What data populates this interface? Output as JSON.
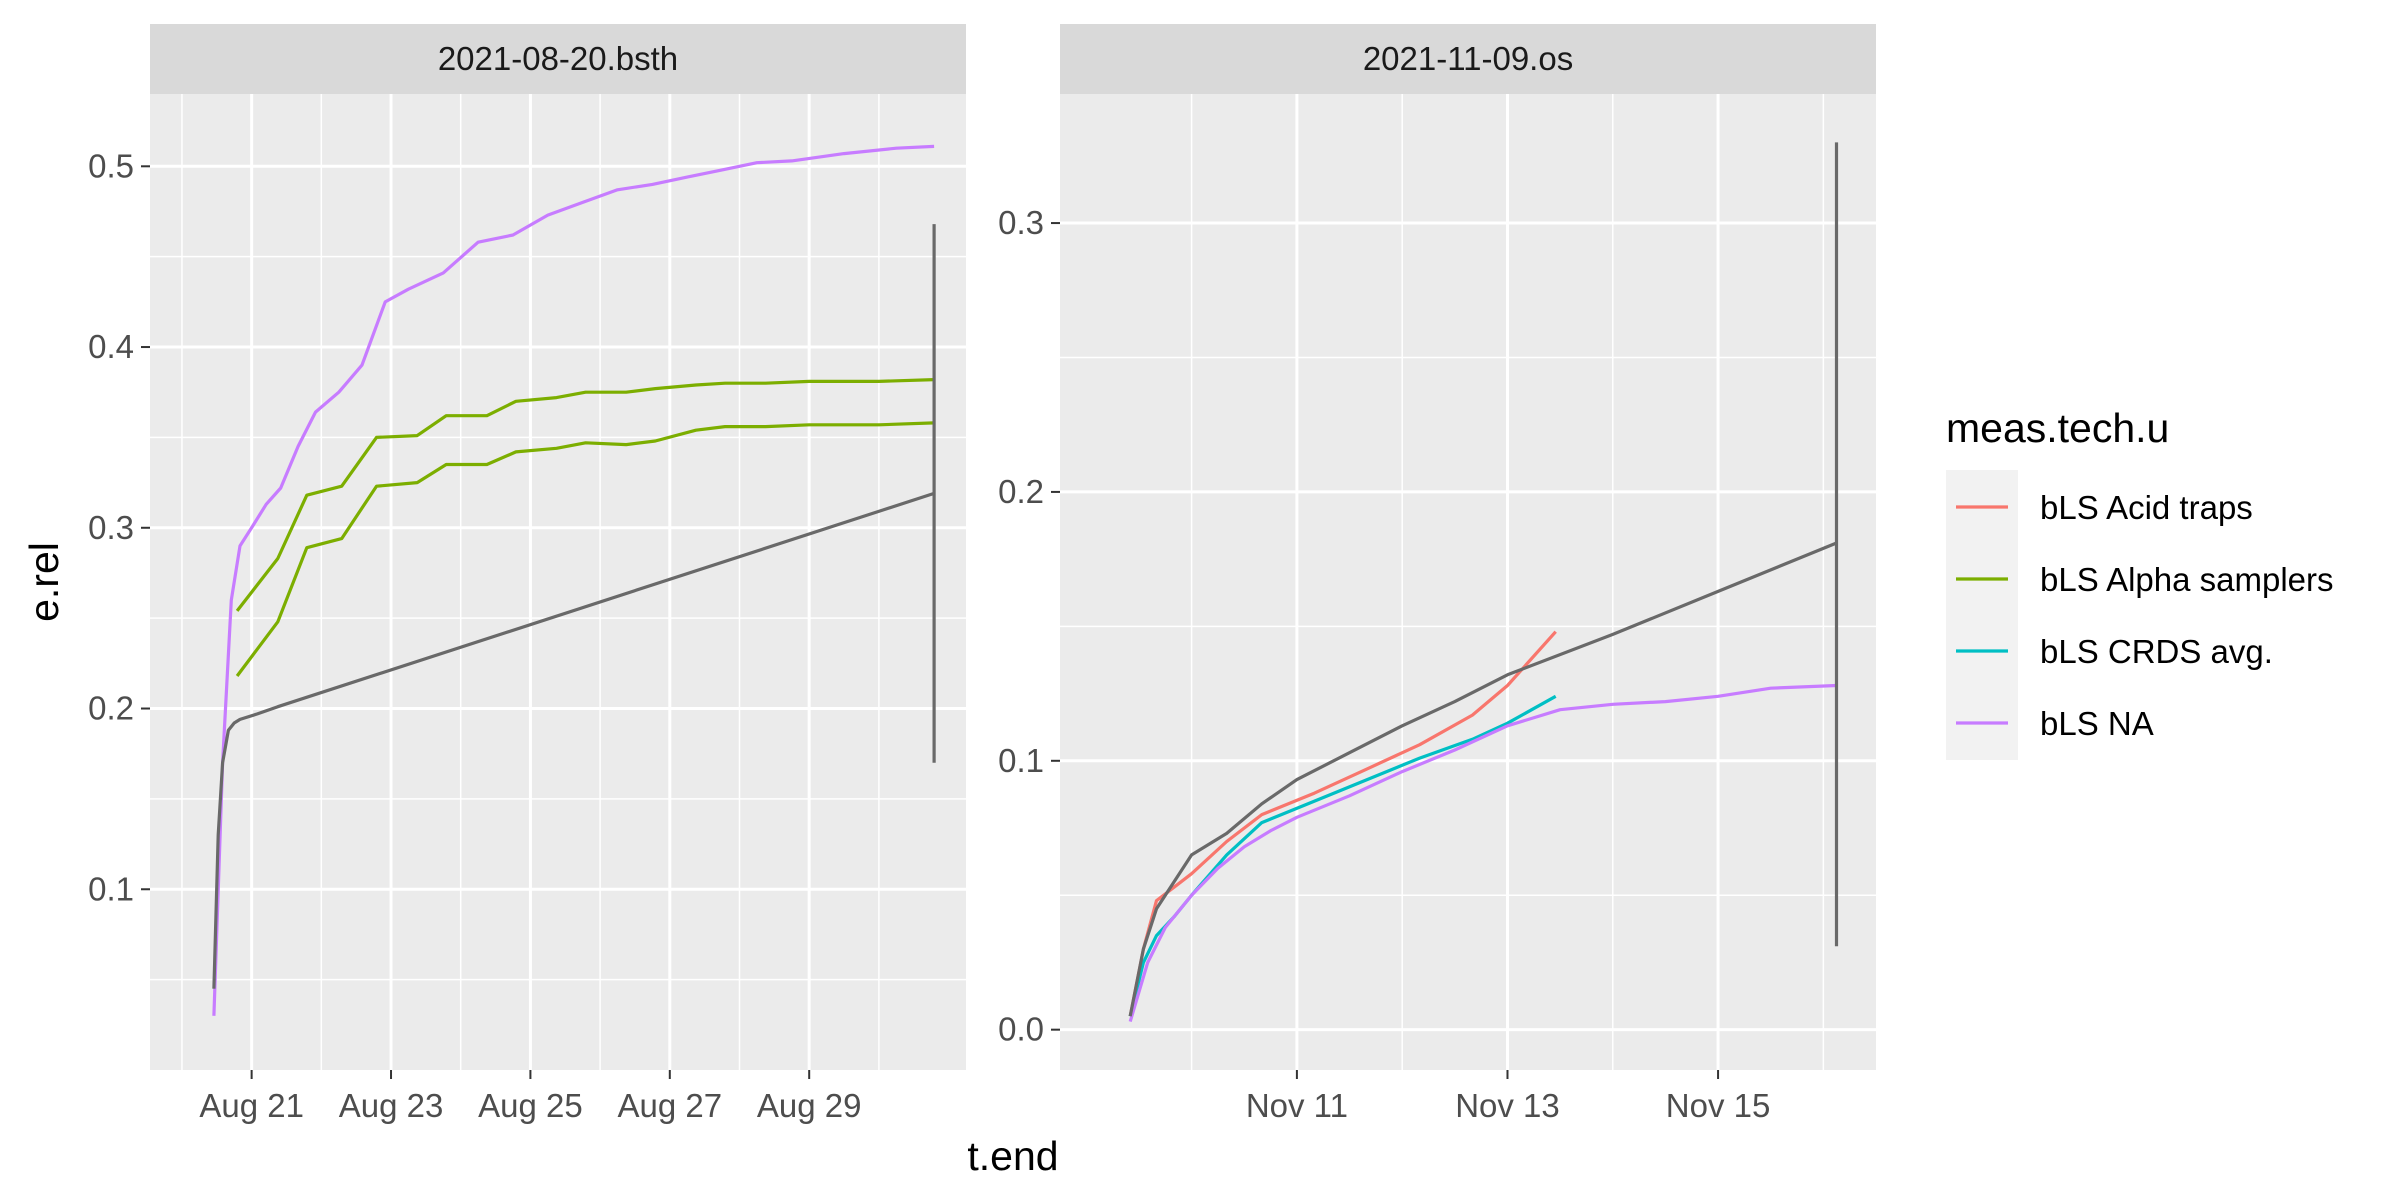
{
  "chart_data": [
    {
      "type": "line",
      "facet_label": "2021-08-20.bsth",
      "x_is_date": true,
      "xlim": [
        "2021-08-19T13:00",
        "2021-08-31T06:00"
      ],
      "ylim": [
        0.0,
        0.54
      ],
      "x_ticks": [
        {
          "label": "Aug 21",
          "value": "2021-08-21T00:00"
        },
        {
          "label": "Aug 23",
          "value": "2021-08-23T00:00"
        },
        {
          "label": "Aug 25",
          "value": "2021-08-25T00:00"
        },
        {
          "label": "Aug 27",
          "value": "2021-08-27T00:00"
        },
        {
          "label": "Aug 29",
          "value": "2021-08-29T00:00"
        }
      ],
      "y_ticks": [
        {
          "label": "0.1",
          "value": 0.1
        },
        {
          "label": "0.2",
          "value": 0.2
        },
        {
          "label": "0.3",
          "value": 0.3
        },
        {
          "label": "0.4",
          "value": 0.4
        },
        {
          "label": "0.5",
          "value": 0.5
        }
      ],
      "series": [
        {
          "group": "bLS Alpha samplers",
          "color": "#7CAE00",
          "x": [
            "2021-08-20T19:00",
            "2021-08-21T09:00",
            "2021-08-21T19:00",
            "2021-08-22T07:00",
            "2021-08-22T19:00",
            "2021-08-23T09:00",
            "2021-08-23T19:00",
            "2021-08-24T09:00",
            "2021-08-24T19:00",
            "2021-08-25T09:00",
            "2021-08-25T19:00",
            "2021-08-26T09:00",
            "2021-08-26T19:00",
            "2021-08-27T09:00",
            "2021-08-27T19:00",
            "2021-08-28T09:00",
            "2021-08-29T00:00",
            "2021-08-30T00:00",
            "2021-08-30T19:00"
          ],
          "y": [
            0.254,
            0.283,
            0.318,
            0.323,
            0.35,
            0.351,
            0.362,
            0.362,
            0.37,
            0.372,
            0.375,
            0.375,
            0.377,
            0.379,
            0.38,
            0.38,
            0.381,
            0.381,
            0.382
          ]
        },
        {
          "group": "bLS Alpha samplers",
          "color": "#7CAE00",
          "x": [
            "2021-08-20T19:00",
            "2021-08-21T09:00",
            "2021-08-21T19:00",
            "2021-08-22T07:00",
            "2021-08-22T19:00",
            "2021-08-23T09:00",
            "2021-08-23T19:00",
            "2021-08-24T09:00",
            "2021-08-24T19:00",
            "2021-08-25T09:00",
            "2021-08-25T19:00",
            "2021-08-26T09:00",
            "2021-08-26T19:00",
            "2021-08-27T09:00",
            "2021-08-27T19:00",
            "2021-08-28T09:00",
            "2021-08-29T00:00",
            "2021-08-30T00:00",
            "2021-08-30T19:00"
          ],
          "y": [
            0.218,
            0.248,
            0.289,
            0.294,
            0.323,
            0.325,
            0.335,
            0.335,
            0.342,
            0.344,
            0.347,
            0.346,
            0.348,
            0.354,
            0.356,
            0.356,
            0.357,
            0.357,
            0.358
          ]
        },
        {
          "group": "bLS NA",
          "color": "#C77CFF",
          "x": [
            "2021-08-20T11:00",
            "2021-08-20T14:00",
            "2021-08-20T17:00",
            "2021-08-20T20:00",
            "2021-08-21T00:00",
            "2021-08-21T05:00",
            "2021-08-21T10:00",
            "2021-08-21T16:00",
            "2021-08-21T22:00",
            "2021-08-22T06:00",
            "2021-08-22T14:00",
            "2021-08-22T22:00",
            "2021-08-23T06:00",
            "2021-08-23T18:00",
            "2021-08-24T06:00",
            "2021-08-24T18:00",
            "2021-08-25T06:00",
            "2021-08-25T18:00",
            "2021-08-26T06:00",
            "2021-08-26T18:00",
            "2021-08-27T06:00",
            "2021-08-27T18:00",
            "2021-08-28T06:00",
            "2021-08-28T18:00",
            "2021-08-29T12:00",
            "2021-08-30T06:00",
            "2021-08-30T19:00"
          ],
          "y": [
            0.03,
            0.17,
            0.26,
            0.29,
            0.3,
            0.313,
            0.322,
            0.345,
            0.364,
            0.375,
            0.39,
            0.425,
            0.432,
            0.441,
            0.458,
            0.462,
            0.473,
            0.48,
            0.487,
            0.49,
            0.494,
            0.498,
            0.502,
            0.503,
            0.507,
            0.51,
            0.511
          ]
        },
        {
          "group": "reference",
          "color": "#696969",
          "x": [
            "2021-08-20T11:00",
            "2021-08-20T12:30",
            "2021-08-20T14:00",
            "2021-08-20T16:00",
            "2021-08-20T18:00",
            "2021-08-20T20:00",
            "2021-08-21T02:00",
            "2021-08-21T09:00",
            "2021-08-30T19:00"
          ],
          "y": [
            0.045,
            0.13,
            0.17,
            0.188,
            0.192,
            0.194,
            0.197,
            0.201,
            0.319
          ]
        },
        {
          "group": "range",
          "color": "#696969",
          "x": [
            "2021-08-30T19:00",
            "2021-08-30T19:00"
          ],
          "y": [
            0.17,
            0.468
          ]
        }
      ]
    },
    {
      "type": "line",
      "facet_label": "2021-11-09.os",
      "x_is_date": true,
      "xlim": [
        "2021-11-08T18:00",
        "2021-11-16T12:00"
      ],
      "ylim": [
        -0.015,
        0.348
      ],
      "x_ticks": [
        {
          "label": "Nov 11",
          "value": "2021-11-11T00:00"
        },
        {
          "label": "Nov 13",
          "value": "2021-11-13T00:00"
        },
        {
          "label": "Nov 15",
          "value": "2021-11-15T00:00"
        }
      ],
      "y_ticks": [
        {
          "label": "0.0",
          "value": 0.0
        },
        {
          "label": "0.1",
          "value": 0.1
        },
        {
          "label": "0.2",
          "value": 0.2
        },
        {
          "label": "0.3",
          "value": 0.3
        }
      ],
      "series": [
        {
          "group": "bLS Acid traps",
          "color": "#F8766D",
          "x": [
            "2021-11-09T10:00",
            "2021-11-09T13:00",
            "2021-11-09T16:00",
            "2021-11-09T20:00",
            "2021-11-10T00:00",
            "2021-11-10T08:00",
            "2021-11-10T16:00",
            "2021-11-11T04:00",
            "2021-11-11T16:00",
            "2021-11-12T04:00",
            "2021-11-12T16:00",
            "2021-11-13T00:00",
            "2021-11-13T11:00"
          ],
          "y": [
            0.005,
            0.03,
            0.048,
            0.053,
            0.058,
            0.07,
            0.08,
            0.088,
            0.097,
            0.106,
            0.117,
            0.128,
            0.148
          ]
        },
        {
          "group": "bLS CRDS avg.",
          "color": "#00BFC4",
          "x": [
            "2021-11-09T10:00",
            "2021-11-09T13:00",
            "2021-11-09T16:00",
            "2021-11-09T20:00",
            "2021-11-10T00:00",
            "2021-11-10T08:00",
            "2021-11-10T16:00",
            "2021-11-11T04:00",
            "2021-11-11T16:00",
            "2021-11-12T04:00",
            "2021-11-12T16:00",
            "2021-11-13T00:00",
            "2021-11-13T11:00"
          ],
          "y": [
            0.005,
            0.025,
            0.035,
            0.042,
            0.05,
            0.065,
            0.077,
            0.085,
            0.093,
            0.101,
            0.108,
            0.114,
            0.124
          ]
        },
        {
          "group": "bLS NA",
          "color": "#C77CFF",
          "x": [
            "2021-11-09T10:00",
            "2021-11-09T14:00",
            "2021-11-09T18:00",
            "2021-11-10T00:00",
            "2021-11-10T06:00",
            "2021-11-10T12:00",
            "2021-11-10T18:00",
            "2021-11-11T00:00",
            "2021-11-11T12:00",
            "2021-11-12T00:00",
            "2021-11-12T12:00",
            "2021-11-13T00:00",
            "2021-11-13T12:00",
            "2021-11-14T00:00",
            "2021-11-14T12:00",
            "2021-11-15T00:00",
            "2021-11-15T12:00",
            "2021-11-16T03:00"
          ],
          "y": [
            0.003,
            0.025,
            0.038,
            0.05,
            0.06,
            0.068,
            0.074,
            0.079,
            0.087,
            0.096,
            0.104,
            0.113,
            0.119,
            0.121,
            0.122,
            0.124,
            0.127,
            0.128
          ]
        },
        {
          "group": "reference",
          "color": "#696969",
          "x": [
            "2021-11-09T10:00",
            "2021-11-09T13:00",
            "2021-11-09T16:00",
            "2021-11-09T20:00",
            "2021-11-10T00:00",
            "2021-11-10T08:00",
            "2021-11-10T16:00",
            "2021-11-11T00:00",
            "2021-11-11T12:00",
            "2021-11-12T00:00",
            "2021-11-12T12:00",
            "2021-11-13T00:00",
            "2021-11-14T00:00",
            "2021-11-15T00:00",
            "2021-11-16T03:00"
          ],
          "y": [
            0.005,
            0.03,
            0.045,
            0.055,
            0.065,
            0.073,
            0.084,
            0.093,
            0.103,
            0.113,
            0.122,
            0.132,
            0.147,
            0.163,
            0.181
          ]
        },
        {
          "group": "range",
          "color": "#696969",
          "x": [
            "2021-11-16T03:00",
            "2021-11-16T03:00"
          ],
          "y": [
            0.031,
            0.33
          ]
        }
      ]
    }
  ],
  "axis": {
    "xlabel": "t.end",
    "ylabel": "e.rel"
  },
  "legend": {
    "title": "meas.tech.u",
    "entries": [
      {
        "label": "bLS Acid traps",
        "color": "#F8766D"
      },
      {
        "label": "bLS Alpha samplers",
        "color": "#7CAE00"
      },
      {
        "label": "bLS CRDS avg.",
        "color": "#00BFC4"
      },
      {
        "label": "bLS NA",
        "color": "#C77CFF"
      }
    ]
  },
  "colors": {
    "panel_background": "#EBEBEB",
    "strip_background": "#D9D9D9",
    "grid": "#FFFFFF",
    "reference_line": "#696969"
  }
}
